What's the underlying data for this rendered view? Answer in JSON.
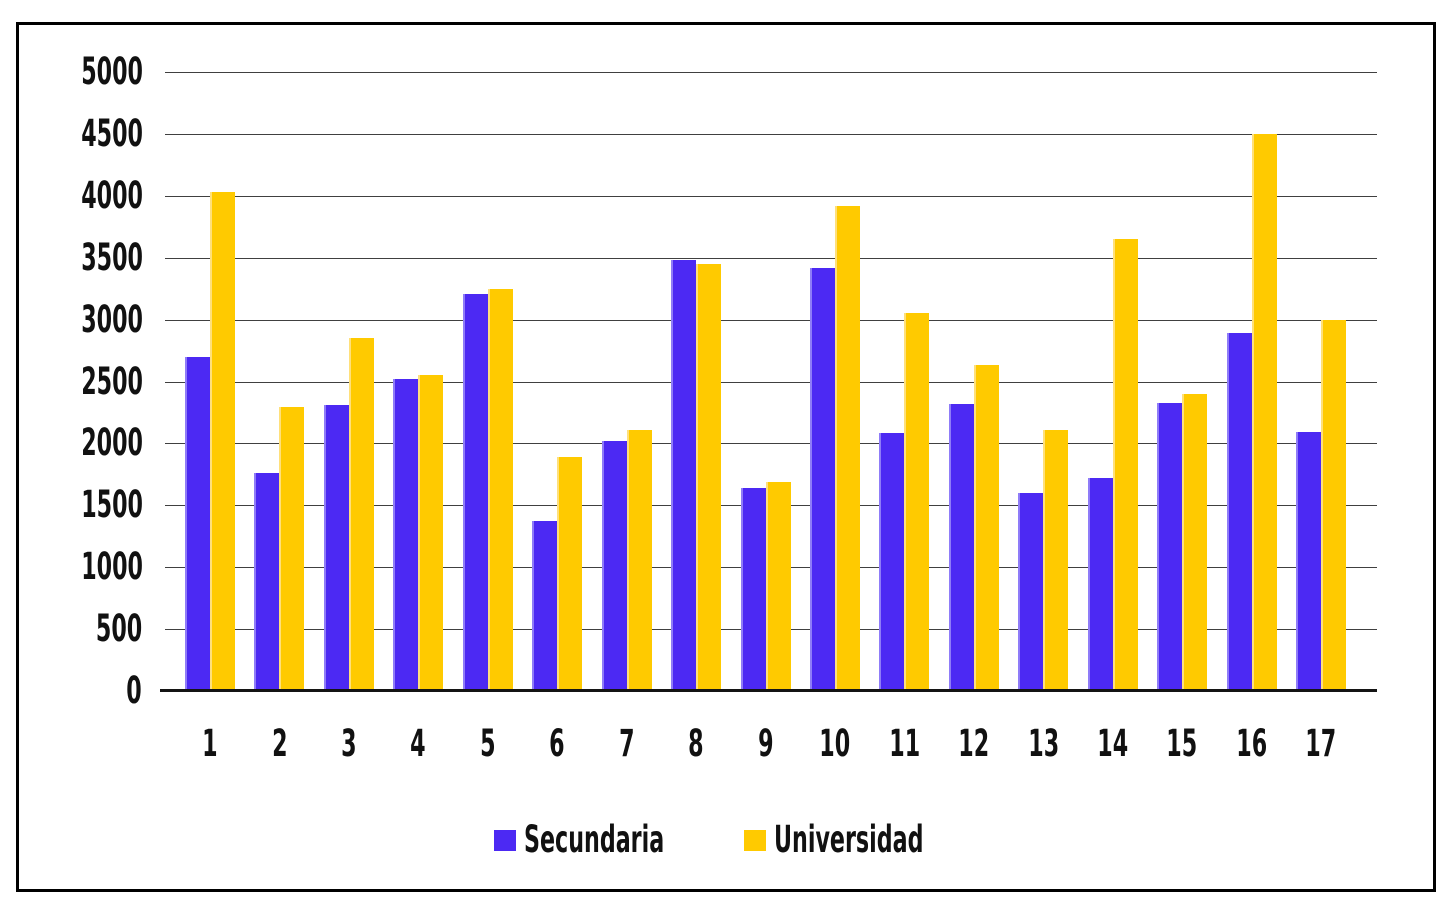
{
  "chart_data": {
    "type": "bar",
    "title": "",
    "xlabel": "",
    "ylabel": "",
    "categories": [
      "1",
      "2",
      "3",
      "4",
      "5",
      "6",
      "7",
      "8",
      "9",
      "10",
      "11",
      "12",
      "13",
      "14",
      "15",
      "16",
      "17"
    ],
    "series": [
      {
        "name": "Secundaria",
        "color": "#4C29F3",
        "edge_highlight_color": "#8F7CF8",
        "values": [
          2700,
          1760,
          2310,
          2520,
          3210,
          1370,
          2020,
          3480,
          1640,
          3420,
          2080,
          2320,
          1600,
          1720,
          2330,
          2890,
          2090
        ]
      },
      {
        "name": "Universidad",
        "color": "#FFCA00",
        "edge_highlight_color": "#FFE07A",
        "values": [
          4030,
          2290,
          2850,
          2550,
          3250,
          1890,
          2110,
          3450,
          1690,
          3920,
          3050,
          2630,
          2110,
          3650,
          2400,
          4500,
          3000
        ]
      }
    ],
    "ylim": [
      0,
      5000
    ],
    "yticks": [
      0,
      500,
      1000,
      1500,
      2000,
      2500,
      3000,
      3500,
      4000,
      4500,
      5000
    ],
    "grid": "horizontal",
    "legend_position": "bottom"
  },
  "colors": {
    "background": "#FFFFFF",
    "frame_border": "#000000",
    "gridline": "#404040",
    "axis": "#141414",
    "text": "#111111"
  }
}
